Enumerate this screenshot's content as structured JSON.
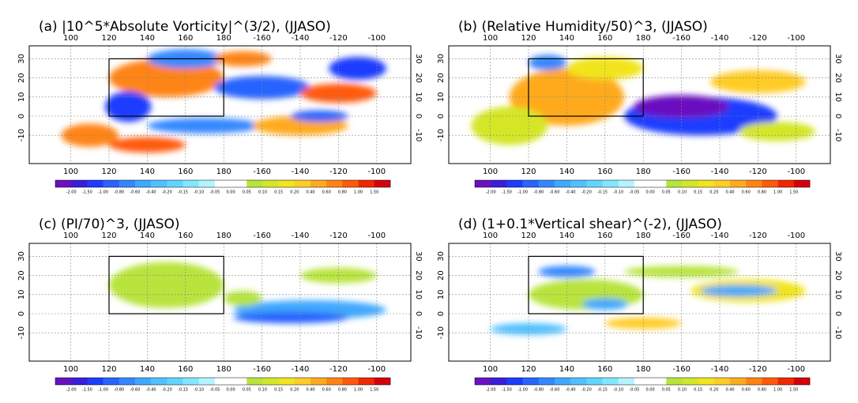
{
  "panels": [
    {
      "title": "(a) |10^5*Absolute Vorticity|^(3/2), (JJASO)"
    },
    {
      "title": "(b) (Relative Humidity/50)^3, (JJASO)"
    },
    {
      "title": "(c) (PI/70)^3, (JJASO)"
    },
    {
      "title": "(d) (1+0.1*Vertical shear)^(-2), (JJASO)"
    }
  ],
  "lon_ticks": [
    100,
    120,
    140,
    160,
    180,
    -160,
    -140,
    -120,
    -100
  ],
  "lat_ticks": [
    30,
    20,
    10,
    0,
    -10
  ],
  "colorbar": {
    "labels": [
      "-2.00",
      "-1.50",
      "-1.00",
      "-0.80",
      "-0.60",
      "-0.40",
      "-0.20",
      "-0.15",
      "-0.10",
      "-0.05",
      "0.00",
      "0.05",
      "0.10",
      "0.15",
      "0.20",
      "0.40",
      "0.60",
      "0.80",
      "1.00",
      "1.50"
    ],
    "colors": [
      "#6a10c0",
      "#3a1ed8",
      "#1e3cff",
      "#2864ff",
      "#3488ff",
      "#40a8ff",
      "#50c0ff",
      "#62d4ff",
      "#82e6ff",
      "#b4f4ff",
      "#ffffff",
      "#ffffff",
      "#b8e43c",
      "#d4e628",
      "#f2e41e",
      "#ffcc28",
      "#ffaa1e",
      "#ff8414",
      "#ff5a0a",
      "#f02800",
      "#d6000a"
    ]
  }
}
